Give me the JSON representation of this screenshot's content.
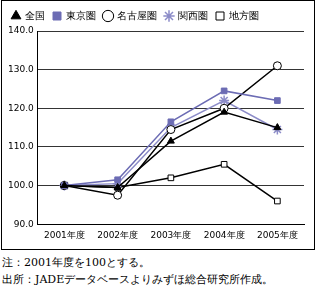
{
  "chart_data": {
    "type": "line",
    "categories": [
      "2001年度",
      "2002年度",
      "2003年度",
      "2004年度",
      "2005年度"
    ],
    "series": [
      {
        "name": "全国",
        "color": "#000000",
        "marker": "triangle",
        "values": [
          100,
          99.5,
          111.5,
          119,
          115
        ]
      },
      {
        "name": "東京圏",
        "color": "#6c6cb4",
        "marker": "square",
        "values": [
          100,
          101.5,
          116.5,
          124.5,
          122
        ]
      },
      {
        "name": "名古屋圏",
        "color": "#000000",
        "marker": "circle-open",
        "values": [
          100,
          97.5,
          114.5,
          120,
          131
        ]
      },
      {
        "name": "関西圏",
        "color": "#8c8cc8",
        "marker": "star",
        "values": [
          100,
          100.5,
          115,
          122,
          114.5
        ]
      },
      {
        "name": "地方圏",
        "color": "#000000",
        "marker": "square-open",
        "values": [
          100,
          99.5,
          102,
          105.5,
          96
        ]
      }
    ],
    "ylim": [
      90,
      140
    ],
    "yticks": [
      {
        "value": 90,
        "label": "90.0"
      },
      {
        "value": 100,
        "label": "100.0"
      },
      {
        "value": 110,
        "label": "110.0"
      },
      {
        "value": 120,
        "label": "120.0"
      },
      {
        "value": 130,
        "label": "130.0"
      },
      {
        "value": 140,
        "label": "140.0"
      }
    ],
    "grid": true,
    "legend": "top-left",
    "notes": [
      "注：2001年度を100とする。",
      "出所：JADEデータベースよりみずほ総合研究所作成。"
    ]
  }
}
